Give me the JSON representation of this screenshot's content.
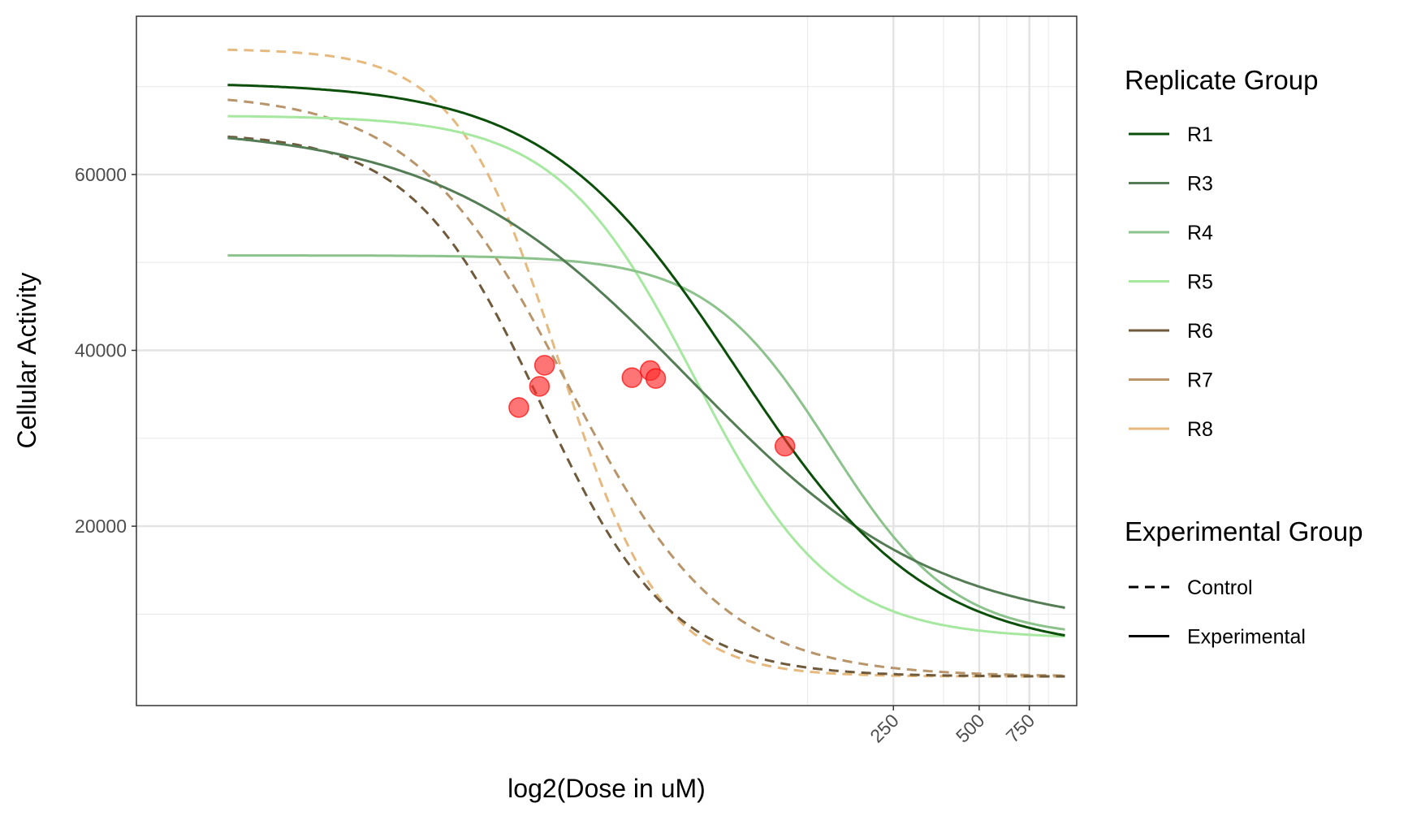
{
  "chart_data": {
    "type": "line",
    "xlabel": "log2(Dose in uM)",
    "ylabel": "Cellular Activity",
    "x_scale": "log2",
    "xlim": [
      0.55,
      1100
    ],
    "ylim": [
      -400,
      78000
    ],
    "x_ticks": [
      250,
      500,
      750
    ],
    "x_tick_labels": [
      "250",
      "500",
      "750"
    ],
    "x_major_grid": [
      250,
      500,
      750
    ],
    "x_minor_grid": [
      125,
      375,
      625,
      875
    ],
    "y_ticks": [
      20000,
      40000,
      60000
    ],
    "y_tick_labels": [
      "20000",
      "40000",
      "60000"
    ],
    "y_minor_grid": [
      10000,
      30000,
      50000,
      70000
    ],
    "grid": true,
    "legend": {
      "position": "right",
      "color_title": "Replicate Group",
      "linetype_title": "Experimental Group",
      "linetype_entries": [
        {
          "label": "Control",
          "dash": "dashed"
        },
        {
          "label": "Experimental",
          "dash": "solid"
        }
      ]
    },
    "series": [
      {
        "name": "R1",
        "group": "Experimental",
        "color": "#0b4f0b",
        "top": 70500,
        "bottom": 5600,
        "ec50": 70,
        "slope": 1.3
      },
      {
        "name": "R3",
        "group": "Experimental",
        "color": "#557d55",
        "top": 65500,
        "bottom": 8100,
        "ec50": 48,
        "slope": 1.0
      },
      {
        "name": "R4",
        "group": "Experimental",
        "color": "#8cc28c",
        "top": 50800,
        "bottom": 7300,
        "ec50": 150,
        "slope": 2.0
      },
      {
        "name": "R5",
        "group": "Experimental",
        "color": "#a6e8a0",
        "top": 66700,
        "bottom": 7200,
        "ec50": 50,
        "slope": 1.8
      },
      {
        "name": "R6",
        "group": "Control",
        "color": "#705a3c",
        "top": 64800,
        "bottom": 2900,
        "ec50": 14.5,
        "slope": 1.9
      },
      {
        "name": "R7",
        "group": "Control",
        "color": "#b8956a",
        "top": 69300,
        "bottom": 2900,
        "ec50": 18,
        "slope": 1.6
      },
      {
        "name": "R8",
        "group": "Control",
        "color": "#e6b97e",
        "top": 74300,
        "bottom": 2900,
        "ec50": 16.8,
        "slope": 2.4
      }
    ],
    "points": [
      {
        "x": 12.1,
        "y": 33500
      },
      {
        "x": 14.3,
        "y": 35900
      },
      {
        "x": 14.9,
        "y": 38300
      },
      {
        "x": 30.2,
        "y": 36900
      },
      {
        "x": 35.0,
        "y": 37700
      },
      {
        "x": 36.6,
        "y": 36800
      },
      {
        "x": 104,
        "y": 29100
      }
    ],
    "point_color": "#ff2b2b"
  }
}
